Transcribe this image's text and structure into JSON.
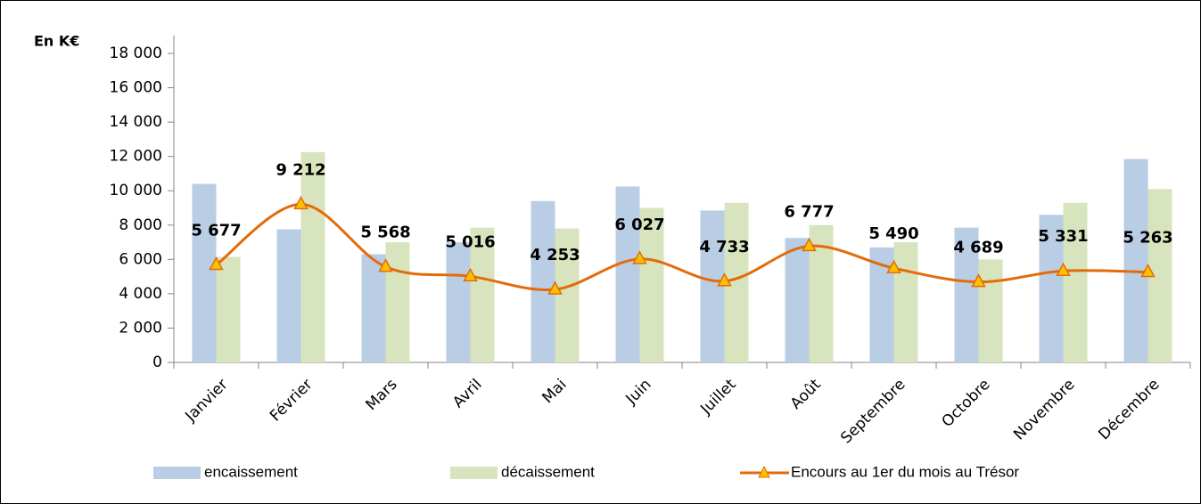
{
  "chart_data": {
    "type": "bar",
    "y_label": "En K€",
    "categories": [
      "Janvier",
      "Février",
      "Mars",
      "Avril",
      "Mai",
      "Juin",
      "Juillet",
      "Août",
      "Septembre",
      "Octobre",
      "Novembre",
      "Décembre"
    ],
    "series": [
      {
        "name": "encaissement",
        "color": "#b9cde5",
        "values": [
          10400,
          7750,
          6300,
          7000,
          9400,
          10250,
          8850,
          7250,
          6700,
          7850,
          8600,
          11850
        ]
      },
      {
        "name": "décaissement",
        "color": "#d7e4bd",
        "values": [
          6150,
          12250,
          7000,
          7850,
          7800,
          9000,
          9300,
          8000,
          7000,
          6000,
          9300,
          10100
        ]
      },
      {
        "name": "Encours au 1er du mois au Trésor",
        "type": "line",
        "color": "#e36c09",
        "marker_fill": "#ffc000",
        "values": [
          5677,
          9212,
          5568,
          5016,
          4253,
          6027,
          4733,
          6777,
          5490,
          4689,
          5331,
          5263
        ],
        "value_labels": [
          "5 677",
          "9 212",
          "5 568",
          "5 016",
          "4 253",
          "6 027",
          "4 733",
          "6 777",
          "5 490",
          "4 689",
          "5 331",
          "5 263"
        ]
      }
    ],
    "ylim": [
      0,
      18000
    ],
    "yticks": [
      0,
      {
        "value": 2000,
        "label": "2 000"
      },
      {
        "value": 4000,
        "label": "4 000"
      },
      {
        "value": 6000,
        "label": "6 000"
      },
      {
        "value": 8000,
        "label": "8 000"
      },
      {
        "value": 10000,
        "label": "10 000"
      },
      {
        "value": 12000,
        "label": "12 000"
      },
      {
        "value": 14000,
        "label": "14 000"
      },
      {
        "value": 16000,
        "label": "16 000"
      },
      {
        "value": 18000,
        "label": "18 000"
      }
    ],
    "grid": false,
    "legend": "bottom"
  }
}
